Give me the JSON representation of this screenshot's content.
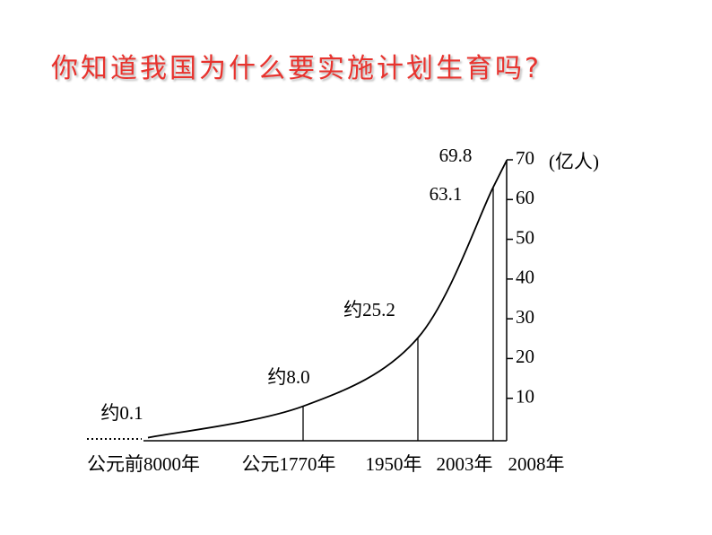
{
  "chart_data": {
    "type": "line",
    "title": "你知道我国为什么要实施计划生育吗?",
    "y_axis_label": "(亿人)",
    "categories": [
      "公元前8000年",
      "公元1770年",
      "1950年",
      "2003年",
      "2008年"
    ],
    "values": [
      0.1,
      8.0,
      25.2,
      63.1,
      69.8
    ],
    "value_labels": [
      "约0.1",
      "约8.0",
      "约25.2",
      "63.1",
      "69.8"
    ],
    "color": "#000000",
    "title_color": "#e8332e",
    "ylim": [
      0,
      70
    ],
    "yticks": [
      10,
      20,
      30,
      40,
      50,
      60,
      70
    ]
  }
}
